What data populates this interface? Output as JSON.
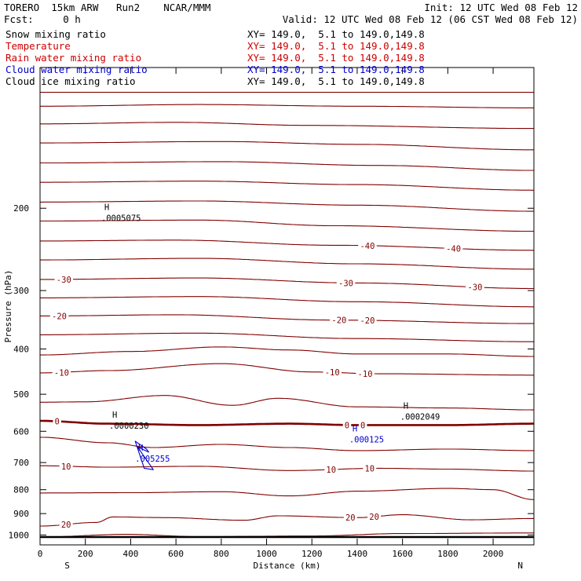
{
  "header": {
    "left_line1": "TORERO  15km ARW   Run2    NCAR/MMM",
    "right_line1": "Init: 12 UTC Wed 08 Feb 12",
    "left_line2": "Fcst:     0 h",
    "right_line2": "Valid: 12 UTC Wed 08 Feb 12 (06 CST Wed 08 Feb 12)"
  },
  "fields": [
    {
      "name": "Snow mixing ratio",
      "xy": "XY= 149.0,  5.1 to 149.0,149.8",
      "color": "#000000"
    },
    {
      "name": "Temperature",
      "xy": "XY= 149.0,  5.1 to 149.0,149.8",
      "color": "#cc0000"
    },
    {
      "name": "Rain water mixing ratio",
      "xy": "XY= 149.0,  5.1 to 149.0,149.8",
      "color": "#cc0000"
    },
    {
      "name": "Cloud water mixing ratio",
      "xy": "XY= 149.0,  5.1 to 149.0,149.8",
      "color": "#0000cc"
    },
    {
      "name": "Cloud ice mixing ratio",
      "xy": "XY= 149.0,  5.1 to 149.0,149.8",
      "color": "#000000"
    }
  ],
  "chart_data": {
    "type": "line",
    "subtype": "vertical cross-section contour",
    "xlabel": "Distance (km)",
    "ylabel": "Pressure (hPa)",
    "xlim": [
      0,
      2180
    ],
    "ylim": [
      1050,
      100
    ],
    "y_scale": "log",
    "x_ticks": [
      0,
      200,
      400,
      600,
      800,
      1000,
      1200,
      1400,
      1600,
      1800,
      2000
    ],
    "y_ticks": [
      200,
      300,
      400,
      500,
      600,
      700,
      800,
      900,
      1000
    ],
    "left_end_label": "S",
    "right_end_label": "N",
    "colors": {
      "temperature": "#800000",
      "cloud_water": "#0000cc",
      "axes": "#000000"
    },
    "temperature_contours": [
      {
        "x": [
          0,
          2180
        ],
        "y": [
          113,
          113
        ]
      },
      {
        "x": [
          0,
          700,
          1400,
          2180
        ],
        "y": [
          121,
          120,
          121,
          122
        ]
      },
      {
        "x": [
          0,
          600,
          1200,
          2180
        ],
        "y": [
          132,
          131,
          133,
          135
        ]
      },
      {
        "x": [
          0,
          800,
          1400,
          2180
        ],
        "y": [
          145,
          144,
          146,
          150
        ]
      },
      {
        "x": [
          0,
          800,
          1500,
          2180
        ],
        "y": [
          160,
          159,
          162,
          166
        ]
      },
      {
        "x": [
          0,
          700,
          1400,
          2180
        ],
        "y": [
          176,
          175,
          178,
          183
        ]
      },
      {
        "x": [
          0,
          700,
          1400,
          2180
        ],
        "y": [
          194,
          193,
          197,
          203
        ]
      },
      {
        "x": [
          0,
          700,
          1300,
          2180
        ],
        "y": [
          213,
          212,
          218,
          224
        ]
      },
      {
        "x": [
          0,
          600,
          1300,
          2180
        ],
        "y": [
          235,
          234,
          240,
          246
        ],
        "label": "-40",
        "label_x": [
          1445,
          1825
        ],
        "emph": false
      },
      {
        "x": [
          0,
          700,
          1400,
          2180
        ],
        "y": [
          258,
          256,
          263,
          270
        ]
      },
      {
        "x": [
          0,
          700,
          1400,
          2180
        ],
        "y": [
          284,
          282,
          289,
          297
        ],
        "label": "-30",
        "label_x": [
          105,
          1350,
          1920
        ]
      },
      {
        "x": [
          0,
          700,
          1400,
          2180
        ],
        "y": [
          311,
          309,
          317,
          325
        ]
      },
      {
        "x": [
          0,
          600,
          1300,
          2180
        ],
        "y": [
          340,
          338,
          347,
          353
        ],
        "label": "-20",
        "label_x": [
          85,
          1320,
          1445
        ]
      },
      {
        "x": [
          0,
          700,
          1400,
          2180
        ],
        "y": [
          373,
          370,
          380,
          386
        ]
      },
      {
        "x": [
          0,
          400,
          800,
          1100,
          1400,
          1800,
          2180
        ],
        "y": [
          412,
          405,
          396,
          402,
          410,
          410,
          415
        ]
      },
      {
        "x": [
          0,
          300,
          800,
          1200,
          1500,
          2180
        ],
        "y": [
          450,
          445,
          430,
          448,
          452,
          455
        ],
        "label": "-10",
        "label_x": [
          95,
          1290,
          1435
        ]
      },
      {
        "x": [
          0,
          200,
          550,
          850,
          1050,
          1400,
          1800,
          2180
        ],
        "y": [
          520,
          519,
          503,
          528,
          510,
          532,
          535,
          540
        ]
      },
      {
        "x": [
          0,
          300,
          700,
          1100,
          1400,
          1800,
          2180
        ],
        "y": [
          570,
          578,
          582,
          578,
          582,
          582,
          578
        ],
        "label": "0",
        "label_x": [
          75,
          1355,
          1425
        ],
        "emph": true
      },
      {
        "x": [
          0,
          300,
          500,
          800,
          1100,
          1400,
          1800,
          2180
        ],
        "y": [
          618,
          635,
          650,
          640,
          650,
          660,
          655,
          660
        ]
      },
      {
        "x": [
          0,
          300,
          700,
          1100,
          1500,
          1800,
          2180
        ],
        "y": [
          711,
          716,
          713,
          728,
          720,
          723,
          730
        ],
        "label": "10",
        "label_x": [
          115,
          1285,
          1455
        ]
      },
      {
        "x": [
          0,
          400,
          800,
          1100,
          1400,
          1800,
          2000,
          2180
        ],
        "y": [
          813,
          812,
          808,
          825,
          806,
          795,
          800,
          840
        ]
      },
      {
        "x": [
          0,
          250,
          320,
          550,
          900,
          1050,
          1400,
          1600,
          1900,
          2180
        ],
        "y": [
          957,
          940,
          915,
          918,
          930,
          910,
          918,
          905,
          928,
          922
        ],
        "label": "20",
        "label_x": [
          115,
          1370,
          1475
        ]
      },
      {
        "x": [
          0,
          380,
          700,
          1200,
          1600,
          2180
        ],
        "y": [
          1010,
          997,
          1008,
          1005,
          993,
          990
        ]
      }
    ],
    "cloud_water_contours": [
      {
        "x": [
          430,
          480,
          470,
          420,
          460,
          500,
          430
        ],
        "y": [
          648,
          665,
          655,
          630,
          720,
          725,
          648
        ]
      }
    ],
    "extrema": [
      {
        "label": "H",
        "value": ".0005075",
        "x": 270,
        "p": 205,
        "color": "#000000"
      },
      {
        "label": "H",
        "value": ".0002049",
        "x": 1590,
        "p": 545,
        "color": "#000000"
      },
      {
        "label": "H",
        "value": ".0000230",
        "x": 305,
        "p": 570,
        "color": "#000000"
      },
      {
        "label": "H",
        "value": ".000125",
        "x": 1365,
        "p": 610,
        "color": "#0000cc"
      },
      {
        "label": "H",
        "value": ".005255",
        "x": 420,
        "p": 670,
        "color": "#0000cc"
      }
    ]
  }
}
